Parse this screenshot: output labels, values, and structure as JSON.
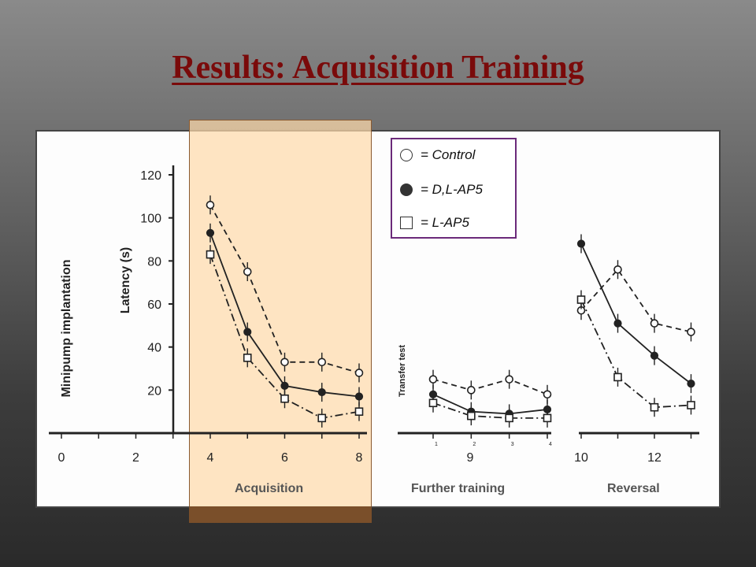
{
  "slide": {
    "title": "Results: Acquisition Training",
    "title_color": "#7a0a0a"
  },
  "legend": {
    "items": [
      {
        "symbol": "open-circle",
        "label": "= Control"
      },
      {
        "symbol": "filled-circle",
        "label": "= D,L-AP5"
      },
      {
        "symbol": "open-square",
        "label": "= L-AP5"
      }
    ],
    "border_color": "#6b2a7a"
  },
  "labels": {
    "minipump": "Minipump implantation",
    "latency": "Latency (s)",
    "transfer": "Transfer test",
    "acquisition": "Acquisition",
    "further": "Further training",
    "reversal": "Reversal"
  },
  "chart_data": {
    "type": "line",
    "ylabel": "Latency (s)",
    "ylim": [
      0,
      120
    ],
    "yticks": [
      20,
      40,
      60,
      80,
      100,
      120
    ],
    "xticks": [
      "0",
      "2",
      "4",
      "6",
      "8",
      "9",
      "10",
      "12"
    ],
    "panels": [
      {
        "name": "Acquisition",
        "x": [
          4,
          5,
          6,
          7,
          8
        ],
        "series": [
          {
            "name": "= Control",
            "style": "dashed",
            "marker": "open-circle",
            "values": [
              106,
              75,
              33,
              33,
              28
            ]
          },
          {
            "name": "= D,L-AP5",
            "style": "solid",
            "marker": "filled-circle",
            "values": [
              93,
              47,
              22,
              19,
              17
            ]
          },
          {
            "name": "= L-AP5",
            "style": "dash-dot",
            "marker": "open-square",
            "values": [
              83,
              35,
              16,
              7,
              10
            ]
          }
        ]
      },
      {
        "name": "Further training",
        "x": [
          1,
          2,
          3,
          4
        ],
        "series": [
          {
            "name": "= Control",
            "style": "dashed",
            "marker": "open-circle",
            "values": [
              25,
              20,
              25,
              18
            ]
          },
          {
            "name": "= D,L-AP5",
            "style": "solid",
            "marker": "filled-circle",
            "values": [
              18,
              10,
              9,
              11
            ]
          },
          {
            "name": "= L-AP5",
            "style": "dash-dot",
            "marker": "open-square",
            "values": [
              14,
              8,
              7,
              7
            ]
          }
        ]
      },
      {
        "name": "Reversal",
        "x": [
          10,
          11,
          12,
          13
        ],
        "series": [
          {
            "name": "= Control",
            "style": "dashed",
            "marker": "open-circle",
            "values": [
              57,
              76,
              51,
              47
            ]
          },
          {
            "name": "= D,L-AP5",
            "style": "solid",
            "marker": "filled-circle",
            "values": [
              88,
              51,
              36,
              23
            ]
          },
          {
            "name": "= L-AP5",
            "style": "dash-dot",
            "marker": "open-square",
            "values": [
              62,
              26,
              12,
              13
            ]
          }
        ]
      }
    ],
    "further_ticks": [
      "1",
      "2",
      "3",
      "4"
    ]
  }
}
